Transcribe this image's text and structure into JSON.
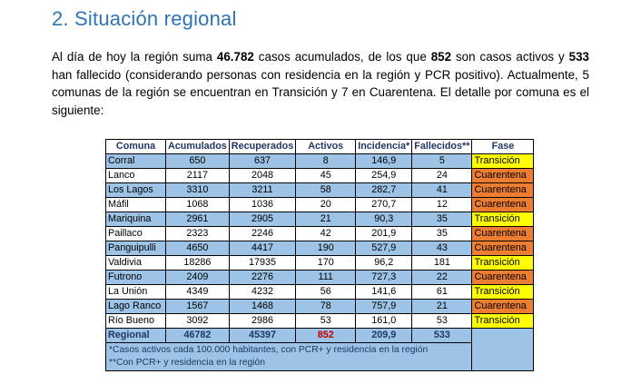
{
  "heading": "2.  Situación regional",
  "paragraph": {
    "p1": "Al día de hoy la región suma ",
    "casos": "46.782",
    "p2": " casos acumulados, de los que ",
    "activos": "852",
    "p3": " son casos activos y ",
    "fallecidos": "533",
    "p4": " han fallecido (considerando personas con residencia en la región y PCR positivo). Actualmente, 5 comunas de la región se encuentran en Transición y 7 en Cuarentena. El detalle por comuna es el siguiente:"
  },
  "table": {
    "headers": [
      "Comuna",
      "Acumulados",
      "Recuperados",
      "Activos",
      "Incidencia*",
      "Fallecidos**",
      "Fase"
    ],
    "rows": [
      {
        "comuna": "Corral",
        "acumulados": "650",
        "recuperados": "637",
        "activos": "8",
        "incidencia": "146,9",
        "fallecidos": "5",
        "fase": "Transición"
      },
      {
        "comuna": "Lanco",
        "acumulados": "2117",
        "recuperados": "2048",
        "activos": "45",
        "incidencia": "254,9",
        "fallecidos": "24",
        "fase": "Cuarentena"
      },
      {
        "comuna": "Los Lagos",
        "acumulados": "3310",
        "recuperados": "3211",
        "activos": "58",
        "incidencia": "282,7",
        "fallecidos": "41",
        "fase": "Cuarentena"
      },
      {
        "comuna": "Máfil",
        "acumulados": "1068",
        "recuperados": "1036",
        "activos": "20",
        "incidencia": "270,7",
        "fallecidos": "12",
        "fase": "Cuarentena"
      },
      {
        "comuna": "Mariquina",
        "acumulados": "2961",
        "recuperados": "2905",
        "activos": "21",
        "incidencia": "90,3",
        "fallecidos": "35",
        "fase": "Transición"
      },
      {
        "comuna": "Paillaco",
        "acumulados": "2323",
        "recuperados": "2246",
        "activos": "42",
        "incidencia": "201,9",
        "fallecidos": "35",
        "fase": "Cuarentena"
      },
      {
        "comuna": "Panguipulli",
        "acumulados": "4650",
        "recuperados": "4417",
        "activos": "190",
        "incidencia": "527,9",
        "fallecidos": "43",
        "fase": "Cuarentena"
      },
      {
        "comuna": "Valdivia",
        "acumulados": "18286",
        "recuperados": "17935",
        "activos": "170",
        "incidencia": "96,2",
        "fallecidos": "181",
        "fase": "Transición"
      },
      {
        "comuna": "Futrono",
        "acumulados": "2409",
        "recuperados": "2276",
        "activos": "111",
        "incidencia": "727,3",
        "fallecidos": "22",
        "fase": "Cuarentena"
      },
      {
        "comuna": "La Unión",
        "acumulados": "4349",
        "recuperados": "4232",
        "activos": "56",
        "incidencia": "141,6",
        "fallecidos": "61",
        "fase": "Transición"
      },
      {
        "comuna": "Lago Ranco",
        "acumulados": "1567",
        "recuperados": "1468",
        "activos": "78",
        "incidencia": "757,9",
        "fallecidos": "21",
        "fase": "Cuarentena"
      },
      {
        "comuna": "Río Bueno",
        "acumulados": "3092",
        "recuperados": "2986",
        "activos": "53",
        "incidencia": "161,0",
        "fallecidos": "53",
        "fase": "Transición"
      }
    ],
    "total": {
      "comuna": "Regional",
      "acumulados": "46782",
      "recuperados": "45397",
      "activos": "852",
      "incidencia": "209,9",
      "fallecidos": "533"
    },
    "notes": [
      "*Casos activos cada 100.000 habitantes, con PCR+ y residencia en la región",
      "**Con PCR+ y residencia en la región"
    ]
  },
  "colors": {
    "heading": "#2e74b5",
    "row_blue": "#9dc3e6",
    "transicion": "#ffff00",
    "cuarentena": "#ed7d31",
    "highlight_red": "#c00000"
  }
}
